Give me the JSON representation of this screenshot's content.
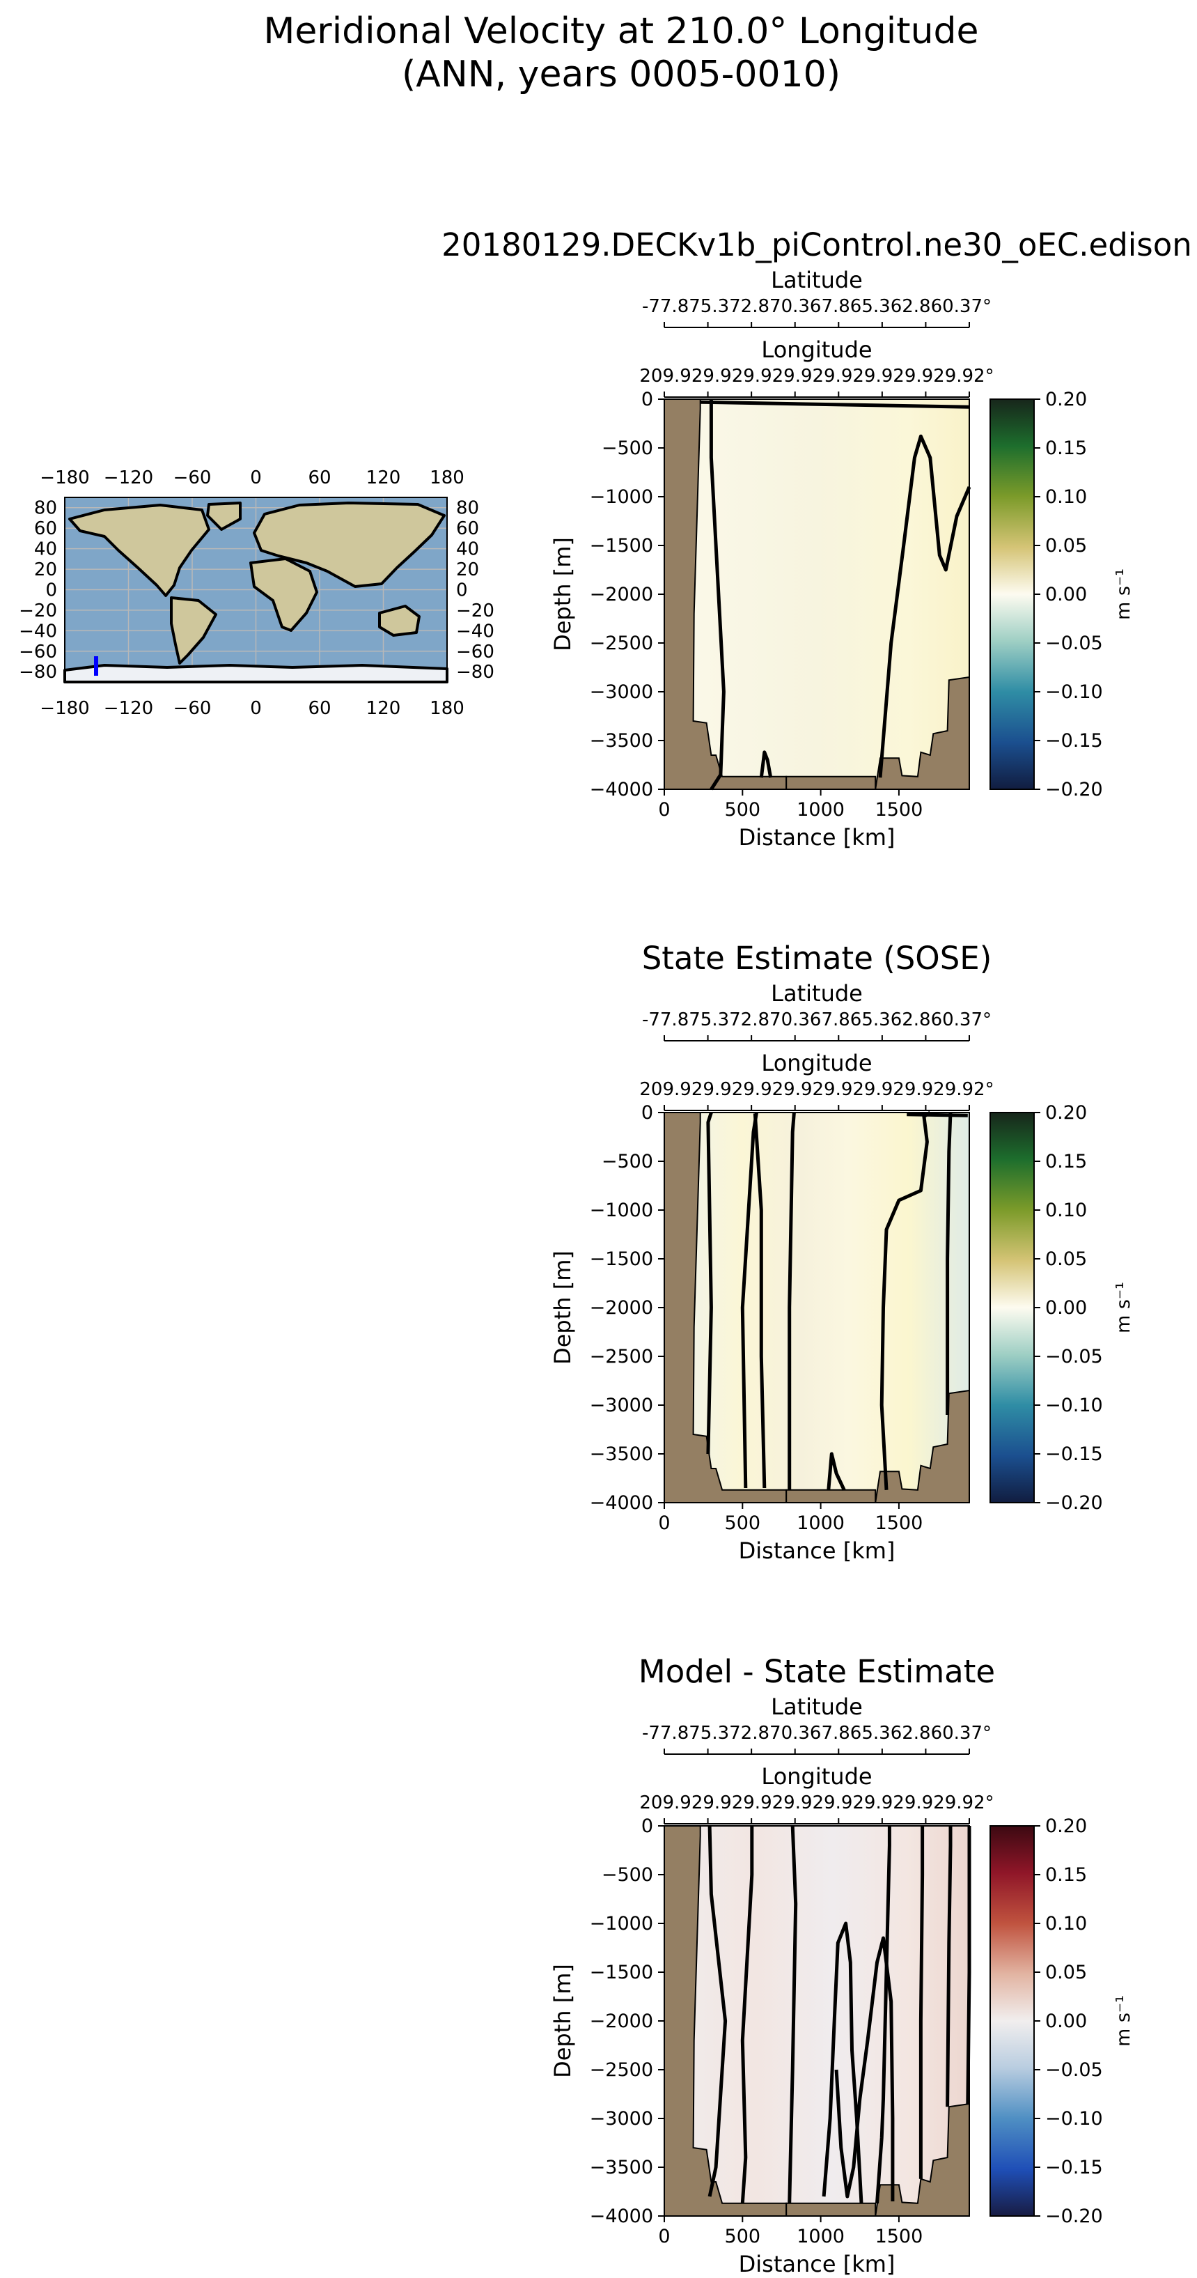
{
  "figure": {
    "title_line1": "Meridional Velocity at 210.0° Longitude",
    "title_line2": "(ANN, years 0005-0010)"
  },
  "map": {
    "top_ticks": [
      "−180",
      "−120",
      "−60",
      "0",
      "60",
      "120",
      "180"
    ],
    "bottom_ticks": [
      "−180",
      "−120",
      "−60",
      "0",
      "60",
      "120",
      "180"
    ],
    "left_ticks": [
      "80",
      "60",
      "40",
      "20",
      "0",
      "−20",
      "−40",
      "−60",
      "−80"
    ],
    "right_ticks": [
      "80",
      "60",
      "40",
      "20",
      "0",
      "−20",
      "−40",
      "−60",
      "−80"
    ],
    "transect_color": "#0000ff",
    "ocean_color": "#7fa6c8",
    "land_color": "#cfc79c"
  },
  "chart_data": [
    {
      "type": "heatmap",
      "title": "20180129.DECKv1b_piControl.ne30_oEC.edison",
      "xlabel": "Distance [km]",
      "ylabel": "Depth [m]",
      "xlim": [
        0,
        1950
      ],
      "ylim": [
        -4000,
        0
      ],
      "x_ticks": [
        "0",
        "500",
        "1000",
        "1500"
      ],
      "y_ticks": [
        "0",
        "−500",
        "−1000",
        "−1500",
        "−2000",
        "−2500",
        "−3000",
        "−3500",
        "−4000"
      ],
      "secondary_axes": [
        {
          "label": "Latitude",
          "ticks_text": "-77.875.372.870.367.865.362.860.37°"
        },
        {
          "label": "Longitude",
          "ticks_text": "209.929.929.929.929.929.929.929.92°"
        }
      ],
      "colorbar": {
        "label": "m s⁻¹",
        "min": -0.2,
        "max": 0.2,
        "ticks": [
          "0.20",
          "0.15",
          "0.10",
          "0.05",
          "0.00",
          "−0.05",
          "−0.10",
          "−0.15",
          "−0.20"
        ],
        "colormap": "delta"
      },
      "zero_contour": true,
      "bathymetry_color": "#947f63"
    },
    {
      "type": "heatmap",
      "title": "State Estimate (SOSE)",
      "xlabel": "Distance [km]",
      "ylabel": "Depth [m]",
      "xlim": [
        0,
        1950
      ],
      "ylim": [
        -4000,
        0
      ],
      "x_ticks": [
        "0",
        "500",
        "1000",
        "1500"
      ],
      "y_ticks": [
        "0",
        "−500",
        "−1000",
        "−1500",
        "−2000",
        "−2500",
        "−3000",
        "−3500",
        "−4000"
      ],
      "secondary_axes": [
        {
          "label": "Latitude",
          "ticks_text": "-77.875.372.870.367.865.362.860.37°"
        },
        {
          "label": "Longitude",
          "ticks_text": "209.929.929.929.929.929.929.929.92°"
        }
      ],
      "colorbar": {
        "label": "m s⁻¹",
        "min": -0.2,
        "max": 0.2,
        "ticks": [
          "0.20",
          "0.15",
          "0.10",
          "0.05",
          "0.00",
          "−0.05",
          "−0.10",
          "−0.15",
          "−0.20"
        ],
        "colormap": "delta"
      },
      "zero_contour": true,
      "bathymetry_color": "#947f63"
    },
    {
      "type": "heatmap",
      "title": "Model - State Estimate",
      "xlabel": "Distance [km]",
      "ylabel": "Depth [m]",
      "xlim": [
        0,
        1950
      ],
      "ylim": [
        -4000,
        0
      ],
      "x_ticks": [
        "0",
        "500",
        "1000",
        "1500"
      ],
      "y_ticks": [
        "0",
        "−500",
        "−1000",
        "−1500",
        "−2000",
        "−2500",
        "−3000",
        "−3500",
        "−4000"
      ],
      "secondary_axes": [
        {
          "label": "Latitude",
          "ticks_text": "-77.875.372.870.367.865.362.860.37°"
        },
        {
          "label": "Longitude",
          "ticks_text": "209.929.929.929.929.929.929.929.92°"
        }
      ],
      "colorbar": {
        "label": "m s⁻¹",
        "min": -0.2,
        "max": 0.2,
        "ticks": [
          "0.20",
          "0.15",
          "0.10",
          "0.05",
          "0.00",
          "−0.05",
          "−0.10",
          "−0.15",
          "−0.20"
        ],
        "colormap": "balance"
      },
      "zero_contour": true,
      "bathymetry_color": "#947f63"
    }
  ]
}
